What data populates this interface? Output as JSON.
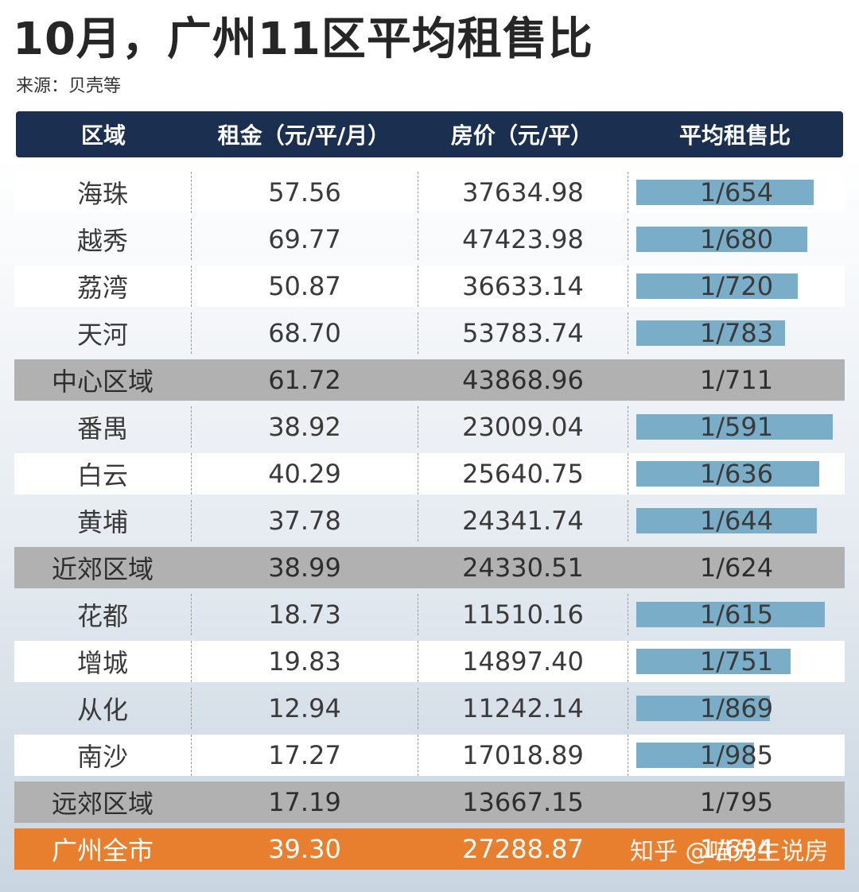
{
  "title": "10月，广州11区平均租售比",
  "source": "来源：贝壳等",
  "watermark": "知乎 @喵先生说房",
  "colors": {
    "header": "#1b3050",
    "bar": "#7aaec8",
    "subtotal": "#b1b1b1",
    "total": "#e77f2e"
  },
  "chart_data": {
    "type": "table",
    "columns": [
      "区域",
      "租金（元/平/月）",
      "房价（元/平）",
      "平均租售比"
    ],
    "rows": [
      {
        "region": "海珠",
        "rent": "57.56",
        "price": "37634.98",
        "ratio": "1/654",
        "ratio_value": 654,
        "kind": "district",
        "tint": "white"
      },
      {
        "region": "越秀",
        "rent": "69.77",
        "price": "47423.98",
        "ratio": "1/680",
        "ratio_value": 680,
        "kind": "district",
        "tint": "clear"
      },
      {
        "region": "荔湾",
        "rent": "50.87",
        "price": "36633.14",
        "ratio": "1/720",
        "ratio_value": 720,
        "kind": "district",
        "tint": "white"
      },
      {
        "region": "天河",
        "rent": "68.70",
        "price": "53783.74",
        "ratio": "1/783",
        "ratio_value": 783,
        "kind": "district",
        "tint": "clear"
      },
      {
        "region": "中心区域",
        "rent": "61.72",
        "price": "43868.96",
        "ratio": "1/711",
        "ratio_value": 711,
        "kind": "subtotal",
        "tint": "sub"
      },
      {
        "region": "番禺",
        "rent": "38.92",
        "price": "23009.04",
        "ratio": "1/591",
        "ratio_value": 591,
        "kind": "district",
        "tint": "clear"
      },
      {
        "region": "白云",
        "rent": "40.29",
        "price": "25640.75",
        "ratio": "1/636",
        "ratio_value": 636,
        "kind": "district",
        "tint": "white"
      },
      {
        "region": "黄埔",
        "rent": "37.78",
        "price": "24341.74",
        "ratio": "1/644",
        "ratio_value": 644,
        "kind": "district",
        "tint": "clear"
      },
      {
        "region": "近郊区域",
        "rent": "38.99",
        "price": "24330.51",
        "ratio": "1/624",
        "ratio_value": 624,
        "kind": "subtotal",
        "tint": "sub"
      },
      {
        "region": "花都",
        "rent": "18.73",
        "price": "11510.16",
        "ratio": "1/615",
        "ratio_value": 615,
        "kind": "district",
        "tint": "clear"
      },
      {
        "region": "增城",
        "rent": "19.83",
        "price": "14897.40",
        "ratio": "1/751",
        "ratio_value": 751,
        "kind": "district",
        "tint": "white"
      },
      {
        "region": "从化",
        "rent": "12.94",
        "price": "11242.14",
        "ratio": "1/869",
        "ratio_value": 869,
        "kind": "district",
        "tint": "clear"
      },
      {
        "region": "南沙",
        "rent": "17.27",
        "price": "17018.89",
        "ratio": "1/985",
        "ratio_value": 985,
        "kind": "district",
        "tint": "white"
      },
      {
        "region": "远郊区域",
        "rent": "17.19",
        "price": "13667.15",
        "ratio": "1/795",
        "ratio_value": 795,
        "kind": "subtotal",
        "tint": "sub"
      },
      {
        "region": "广州全市",
        "rent": "39.30",
        "price": "27288.87",
        "ratio": "1/694",
        "ratio_value": 694,
        "kind": "total",
        "tint": "total"
      }
    ]
  }
}
